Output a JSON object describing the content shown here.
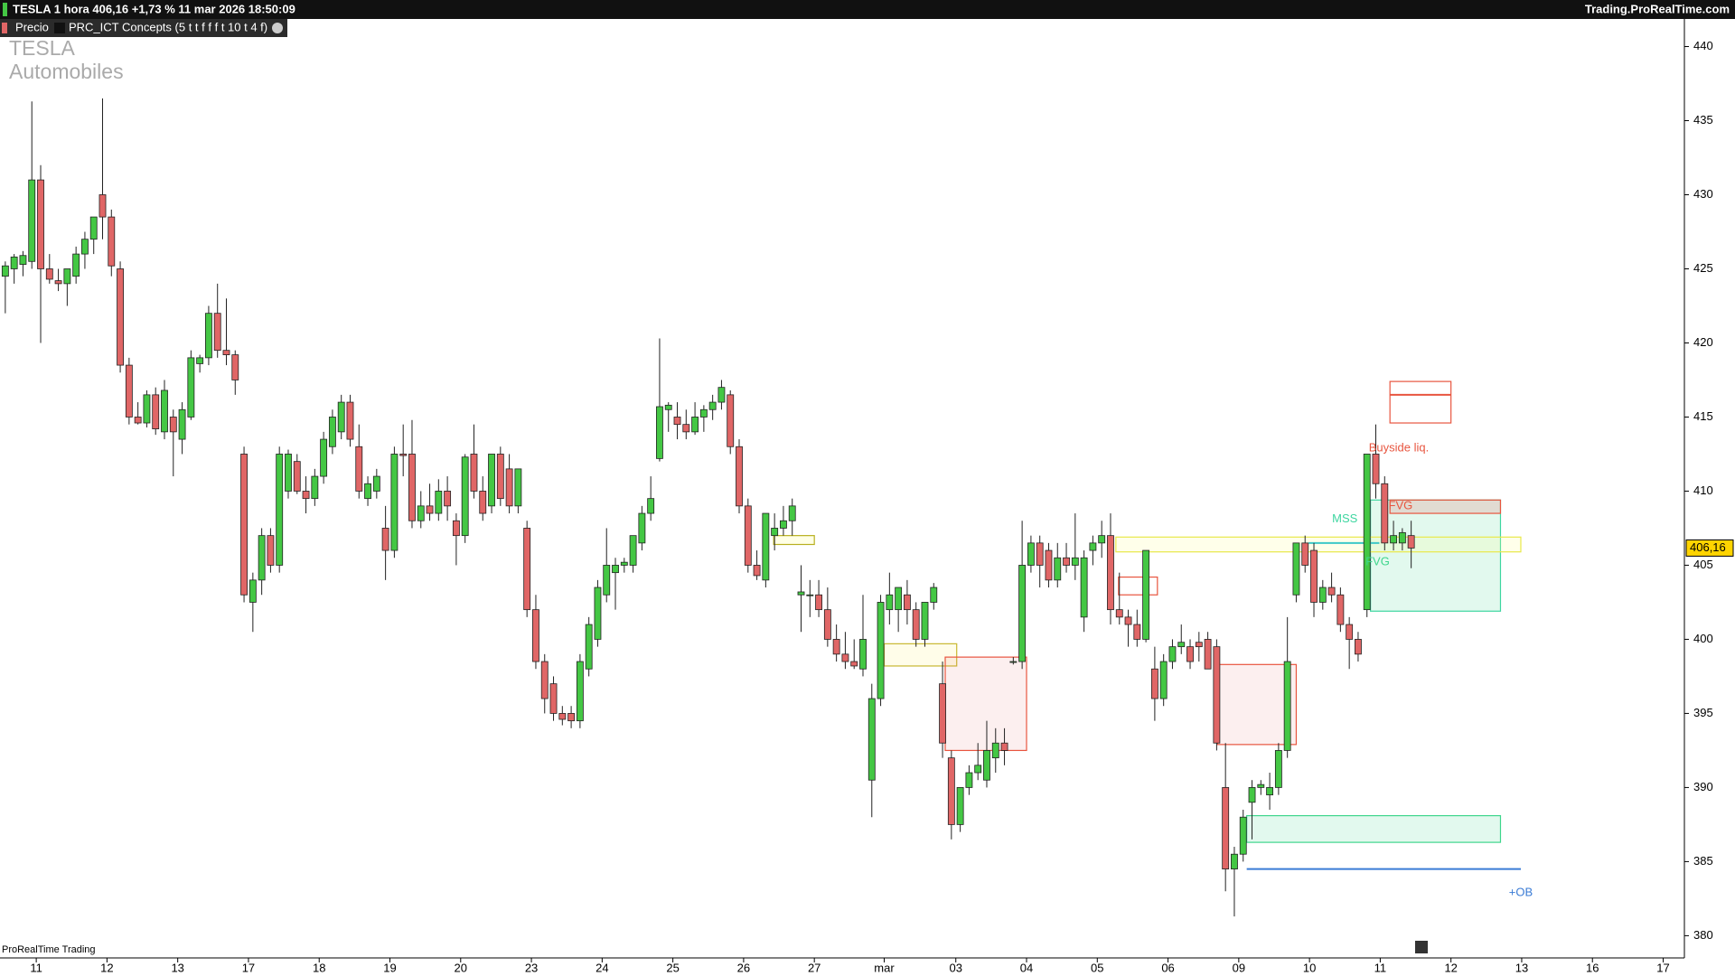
{
  "header": {
    "instrument": "TESLA 1 hora 406,16 +1,73 % 11 mar 2026 18:50:09",
    "site": "Trading.ProRealTime.com",
    "tab_price": "Precio",
    "tab_indicator": "PRC_ICT Concepts (5 t t f f f t 10 t 4 f)",
    "watermark": [
      "TESLA",
      "Automobiles"
    ],
    "footer": "ProRealTime Trading"
  },
  "chart_data": {
    "type": "candlestick",
    "ohlc": [
      [
        424.5,
        425.5,
        422,
        425.2
      ],
      [
        425,
        426,
        424,
        425.8
      ],
      [
        425.3,
        426.2,
        424.5,
        425.9
      ],
      [
        425.5,
        436.3,
        425,
        431
      ],
      [
        431,
        432,
        420,
        425
      ],
      [
        425,
        426,
        424,
        424.3
      ],
      [
        424.2,
        425,
        423.5,
        424
      ],
      [
        424,
        425,
        422.5,
        425
      ],
      [
        424.5,
        426.5,
        424,
        426
      ],
      [
        426,
        427.5,
        425,
        427
      ],
      [
        427,
        428.5,
        426,
        428.5
      ],
      [
        430,
        436.5,
        427,
        428.5
      ],
      [
        428.5,
        429,
        424.5,
        425.2
      ],
      [
        425,
        425.5,
        418,
        418.5
      ],
      [
        418.5,
        419,
        414.5,
        415
      ],
      [
        415,
        416,
        414.5,
        414.6
      ],
      [
        414.6,
        416.8,
        414.3,
        416.5
      ],
      [
        416.5,
        417,
        413.8,
        414.2
      ],
      [
        414,
        417.5,
        413.5,
        416.8
      ],
      [
        415,
        415.5,
        411,
        414
      ],
      [
        413.5,
        416,
        412.5,
        415.5
      ],
      [
        415,
        419.5,
        414.8,
        419
      ],
      [
        418.6,
        419.2,
        418,
        419
      ],
      [
        419,
        422.5,
        418.5,
        422
      ],
      [
        422,
        424,
        419,
        419.5
      ],
      [
        419.5,
        423,
        418.5,
        419.2
      ],
      [
        419.2,
        419.5,
        416.5,
        417.5
      ],
      [
        412.5,
        413,
        402.5,
        403
      ],
      [
        402.5,
        404.5,
        400.5,
        404
      ],
      [
        404,
        407.5,
        403,
        407
      ],
      [
        407,
        407.5,
        404.5,
        405
      ],
      [
        405,
        413,
        404.5,
        412.5
      ],
      [
        410,
        412.8,
        409.5,
        412.5
      ],
      [
        412,
        412.5,
        409.8,
        410
      ],
      [
        410,
        411,
        408.5,
        409.5
      ],
      [
        409.5,
        411.5,
        409,
        411
      ],
      [
        411,
        414,
        410.5,
        413.5
      ],
      [
        413,
        415.5,
        412.5,
        415
      ],
      [
        414,
        416.5,
        413.5,
        416
      ],
      [
        416,
        416.5,
        413,
        413.5
      ],
      [
        413,
        414.5,
        409.5,
        410
      ],
      [
        409.5,
        411,
        409,
        410.5
      ],
      [
        410,
        411.5,
        409.5,
        411
      ],
      [
        407.5,
        409,
        404,
        406
      ],
      [
        406,
        413,
        405.5,
        412.5
      ],
      [
        412.5,
        414.5,
        411,
        412.4
      ],
      [
        412.5,
        414.8,
        407.5,
        408
      ],
      [
        408,
        410,
        407.5,
        409
      ],
      [
        409,
        410.5,
        408,
        408.5
      ],
      [
        408.5,
        410.8,
        408,
        410
      ],
      [
        410,
        411,
        408,
        409
      ],
      [
        408,
        408.5,
        405,
        407
      ],
      [
        407,
        412.5,
        406.5,
        412.3
      ],
      [
        412.5,
        414.5,
        409.5,
        410
      ],
      [
        410,
        411,
        408,
        408.5
      ],
      [
        409,
        412.5,
        408.5,
        412.5
      ],
      [
        412.5,
        413,
        409,
        409.5
      ],
      [
        411.5,
        412.5,
        408.5,
        409
      ],
      [
        409,
        411.5,
        408.5,
        411.5
      ],
      [
        407.5,
        408,
        401.5,
        402
      ],
      [
        402,
        403,
        398,
        398.5
      ],
      [
        398.5,
        399,
        395,
        396
      ],
      [
        397,
        397.5,
        394.5,
        395
      ],
      [
        395,
        395.5,
        394.2,
        394.6
      ],
      [
        395,
        395.5,
        394,
        394.5
      ],
      [
        394.5,
        399,
        394,
        398.5
      ],
      [
        398,
        401.5,
        397.5,
        401
      ],
      [
        400,
        404,
        399.5,
        403.5
      ],
      [
        403,
        407.5,
        402.5,
        405
      ],
      [
        404.5,
        405.5,
        402,
        405
      ],
      [
        405,
        405.5,
        404.5,
        405.2
      ],
      [
        405,
        407,
        404.5,
        407
      ],
      [
        406.5,
        409,
        406,
        408.5
      ],
      [
        408.5,
        411,
        408,
        409.5
      ],
      [
        412.2,
        420.3,
        412,
        415.7
      ],
      [
        415.5,
        416,
        414,
        415.8
      ],
      [
        415,
        416,
        413.5,
        414.5
      ],
      [
        414.5,
        415.5,
        413.5,
        414
      ],
      [
        414,
        416,
        413.8,
        415
      ],
      [
        415,
        415.8,
        414,
        415.5
      ],
      [
        415.5,
        416.5,
        414.8,
        416
      ],
      [
        416,
        417.5,
        415.5,
        417
      ],
      [
        416.5,
        416.8,
        412.5,
        413
      ],
      [
        413,
        413.5,
        408.5,
        409
      ],
      [
        409,
        409.5,
        404.5,
        405
      ],
      [
        405,
        406,
        404,
        404.3
      ],
      [
        404,
        408.5,
        403.5,
        408.5
      ],
      [
        407,
        408.5,
        406,
        407.5
      ],
      [
        407.5,
        409,
        407,
        408
      ],
      [
        408,
        409.5,
        407,
        409
      ],
      [
        403,
        405,
        400.5,
        403.2
      ],
      [
        403,
        404,
        401.5,
        403
      ],
      [
        403,
        404,
        401.5,
        402
      ],
      [
        402,
        403.5,
        399.5,
        400
      ],
      [
        400,
        401,
        398.5,
        399
      ],
      [
        399,
        400.5,
        398,
        398.5
      ],
      [
        398.5,
        400,
        398,
        398.2
      ],
      [
        398,
        403,
        397.5,
        400
      ],
      [
        390.5,
        397,
        388,
        396
      ],
      [
        396,
        403,
        395.5,
        402.5
      ],
      [
        402,
        404.5,
        401,
        403
      ],
      [
        402,
        403.5,
        400.5,
        403.5
      ],
      [
        403,
        404,
        401,
        402
      ],
      [
        402,
        402.5,
        399.5,
        400
      ],
      [
        400,
        402.5,
        399.5,
        402.5
      ],
      [
        402.5,
        403.8,
        402,
        403.5
      ],
      [
        397,
        398.5,
        392,
        393
      ],
      [
        392,
        392.5,
        386.5,
        387.5
      ],
      [
        387.5,
        390,
        387,
        390
      ],
      [
        390,
        391.5,
        389.5,
        391
      ],
      [
        391,
        393,
        390.5,
        391.5
      ],
      [
        390.5,
        394.5,
        390,
        392.5
      ],
      [
        392,
        394,
        391,
        393
      ],
      [
        393,
        394,
        391.5,
        392.5
      ],
      [
        398.5,
        398.8,
        398.3,
        398.5
      ],
      [
        398.5,
        408,
        398,
        405
      ],
      [
        405,
        407,
        404.5,
        406.5
      ],
      [
        406.5,
        407,
        403.5,
        405
      ],
      [
        406,
        406.5,
        403.5,
        404
      ],
      [
        404,
        406.5,
        403.5,
        405.5
      ],
      [
        405.5,
        406.5,
        404.5,
        405
      ],
      [
        405,
        408.5,
        404,
        405.5
      ],
      [
        401.5,
        406,
        400.5,
        405.5
      ],
      [
        406,
        407,
        405,
        406.5
      ],
      [
        406.5,
        408,
        405.5,
        407
      ],
      [
        407,
        408.5,
        401,
        402
      ],
      [
        402,
        404.5,
        401,
        401.5
      ],
      [
        401.5,
        402,
        399.5,
        401
      ],
      [
        401,
        402,
        399.5,
        400
      ],
      [
        400,
        406,
        399.8,
        406
      ],
      [
        398,
        399.5,
        394.5,
        396
      ],
      [
        396,
        399,
        395.5,
        398.5
      ],
      [
        398.5,
        400,
        398,
        399.5
      ],
      [
        399.5,
        401,
        399,
        399.8
      ],
      [
        399.5,
        400,
        398,
        398.5
      ],
      [
        399.8,
        400.5,
        398.5,
        399.5
      ],
      [
        400,
        400.5,
        398,
        398
      ],
      [
        399.5,
        400,
        392.5,
        393
      ],
      [
        390,
        393,
        383,
        384.5
      ],
      [
        384.5,
        386,
        381.3,
        385.5
      ],
      [
        385.5,
        388.5,
        385,
        388
      ],
      [
        389,
        390.5,
        386.5,
        390
      ],
      [
        390,
        390.5,
        389.5,
        390.2
      ],
      [
        389.5,
        391,
        388.5,
        390
      ],
      [
        390,
        393,
        389.5,
        392.5
      ],
      [
        392.5,
        401.5,
        392,
        398.5
      ],
      [
        403,
        406.5,
        402.5,
        406.5
      ],
      [
        406.5,
        407,
        404.5,
        405
      ],
      [
        406,
        406.5,
        401.5,
        402.5
      ],
      [
        402.5,
        404,
        402,
        403.5
      ],
      [
        403.5,
        404.5,
        402.5,
        403
      ],
      [
        403,
        403.5,
        400.5,
        401
      ],
      [
        401,
        401.5,
        398,
        400
      ],
      [
        400,
        400.5,
        398.5,
        399
      ],
      [
        402,
        412.5,
        401.5,
        412.5
      ],
      [
        412.5,
        414.5,
        409.5,
        410.5
      ],
      [
        410.5,
        411,
        406,
        406.5
      ],
      [
        406.5,
        408,
        406,
        407
      ],
      [
        406.5,
        407.5,
        406,
        407.2
      ],
      [
        407,
        408,
        404.8,
        406.16
      ]
    ],
    "up_color": "#44c744",
    "down_color": "#e06666",
    "xlim": [
      -0.6,
      189.9
    ],
    "xticks": [
      {
        "value": 3.5,
        "label": "11"
      },
      {
        "value": 11.5,
        "label": "12"
      },
      {
        "value": 19.5,
        "label": "13"
      },
      {
        "value": 27.5,
        "label": "17"
      },
      {
        "value": 35.5,
        "label": "18"
      },
      {
        "value": 43.5,
        "label": "19"
      },
      {
        "value": 51.5,
        "label": "20"
      },
      {
        "value": 59.5,
        "label": "23"
      },
      {
        "value": 67.5,
        "label": "24"
      },
      {
        "value": 75.5,
        "label": "25"
      },
      {
        "value": 83.5,
        "label": "26"
      },
      {
        "value": 91.5,
        "label": "27"
      },
      {
        "value": 99.4,
        "label": "mar"
      },
      {
        "value": 107.5,
        "label": "03"
      },
      {
        "value": 115.5,
        "label": "04"
      },
      {
        "value": 123.5,
        "label": "05"
      },
      {
        "value": 131.5,
        "label": "06"
      },
      {
        "value": 139.5,
        "label": "09"
      },
      {
        "value": 147.5,
        "label": "10"
      },
      {
        "value": 155.5,
        "label": "11"
      },
      {
        "value": 163.5,
        "label": "12"
      },
      {
        "value": 171.5,
        "label": "13"
      },
      {
        "value": 179.5,
        "label": "16"
      },
      {
        "value": 187.5,
        "label": "17"
      }
    ],
    "ylim": [
      378.5,
      441.8
    ],
    "yticks": [
      380,
      385,
      390,
      395,
      400,
      405,
      410,
      415,
      420,
      425,
      430,
      435,
      440
    ],
    "last_price": {
      "value": 406.16,
      "label": "406,16"
    },
    "zones": [
      {
        "x": [
          156.6,
          163.5
        ],
        "y": [
          414.6,
          417.4
        ],
        "color": "#e8553f",
        "fill": "none"
      },
      {
        "x": [
          156.6,
          163.5
        ],
        "y": [
          416.5,
          416.5
        ],
        "color": "#e8553f",
        "fill": "none"
      },
      {
        "x": [
          154.4,
          169.1
        ],
        "y": [
          401.9,
          409.4
        ],
        "color": "#3ed6a0",
        "fill": "rgba(62,214,140,0.15)"
      },
      {
        "x": [
          156.6,
          169.1
        ],
        "y": [
          408.5,
          409.4
        ],
        "color": "#e8553f",
        "fill": "rgba(224,102,102,0.2)"
      },
      {
        "x": [
          125.6,
          171.4
        ],
        "y": [
          405.9,
          406.9
        ],
        "color": "#e8e84a",
        "fill": "rgba(255,255,150,0.2)"
      },
      {
        "x": [
          125.9,
          130.3
        ],
        "y": [
          403,
          404.2
        ],
        "color": "#e8553f",
        "fill": "none"
      },
      {
        "x": [
          147.4,
          155.4
        ],
        "y": [
          406.5,
          406.5
        ],
        "color": "#3ec8c8",
        "fill": "none"
      },
      {
        "x": [
          86.9,
          91.5
        ],
        "y": [
          406.4,
          407
        ],
        "color": "#b8b020",
        "fill": "rgba(255,255,150,0.25)"
      },
      {
        "x": [
          99.4,
          107.6
        ],
        "y": [
          398.2,
          399.7
        ],
        "color": "#c8b830",
        "fill": "rgba(255,250,200,0.4)"
      },
      {
        "x": [
          106.3,
          115.5
        ],
        "y": [
          392.5,
          398.8
        ],
        "color": "#e8553f",
        "fill": "rgba(224,102,102,0.1)"
      },
      {
        "x": [
          137.1,
          146
        ],
        "y": [
          392.9,
          398.3
        ],
        "color": "#e8553f",
        "fill": "rgba(224,102,102,0.1)"
      },
      {
        "x": [
          140.4,
          169.1
        ],
        "y": [
          386.3,
          388.1
        ],
        "color": "#3ed68c",
        "fill": "rgba(62,214,140,0.15)"
      },
      {
        "x": [
          140.4,
          171.4
        ],
        "y": [
          384.5,
          384.5
        ],
        "color": "#3a7bd5",
        "fill": "none"
      }
    ],
    "labels": [
      {
        "text": "Buyside liq.",
        "x": 157.6,
        "y": 412.9,
        "color": "#e8553f"
      },
      {
        "text": "MSS",
        "x": 151.5,
        "y": 408.1,
        "color": "#3ed6a0"
      },
      {
        "text": "FVG",
        "x": 157.8,
        "y": 409,
        "color": "#e8553f"
      },
      {
        "text": "FVG",
        "x": 155.2,
        "y": 405.2,
        "color": "#3ed68c"
      },
      {
        "text": "+OB",
        "x": 171.4,
        "y": 382.9,
        "color": "#3a7bd5"
      }
    ]
  }
}
